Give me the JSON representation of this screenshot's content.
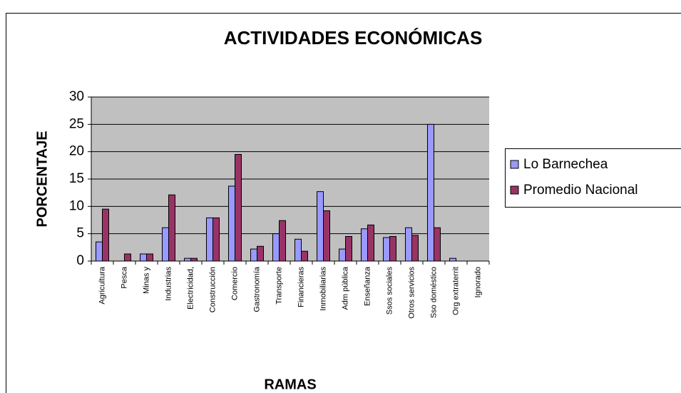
{
  "chart_data": {
    "type": "bar",
    "title": "ACTIVIDADES ECONÓMICAS",
    "x_label": "RAMAS",
    "y_label": "PORCENTAJE",
    "categories": [
      "Agricultura",
      "Pesca",
      "Minas y",
      "Industrias",
      "Electricidad,",
      "Construcción",
      "Comercio",
      "Gastronomía",
      "Transporte",
      "Financieras",
      "Inmobiliarias",
      "Adm pública",
      "Enseñanza",
      "Ssos sociales",
      "Otros servicios",
      "Sso doméstico",
      "Org extraterrit",
      "Ignorado"
    ],
    "series": [
      {
        "name": "Lo Barnechea",
        "color": "#9999ff",
        "values": [
          3.5,
          0,
          1.3,
          6.1,
          0.5,
          7.9,
          13.7,
          2.2,
          5,
          4,
          12.7,
          2.2,
          5.9,
          4.3,
          6.1,
          25,
          0.5,
          0
        ]
      },
      {
        "name": "Promedio Nacional",
        "color": "#993366",
        "values": [
          9.5,
          1.3,
          1.3,
          12.1,
          0.5,
          7.9,
          19.5,
          2.7,
          7.4,
          1.8,
          9.2,
          4.5,
          6.6,
          4.5,
          4.7,
          6.1,
          0,
          0
        ]
      }
    ],
    "ylim": [
      0,
      30
    ],
    "yticks": [
      0,
      5,
      10,
      15,
      20,
      25,
      30
    ],
    "grid": true,
    "legend": "right"
  }
}
